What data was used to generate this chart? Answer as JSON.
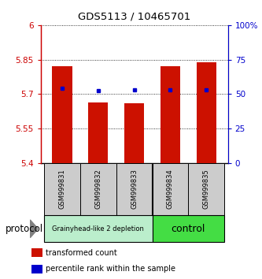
{
  "title": "GDS5113 / 10465701",
  "samples": [
    "GSM999831",
    "GSM999832",
    "GSM999833",
    "GSM999834",
    "GSM999835"
  ],
  "bar_values": [
    5.82,
    5.665,
    5.66,
    5.82,
    5.84
  ],
  "bar_base": 5.4,
  "percentile_values": [
    5.725,
    5.715,
    5.718,
    5.718,
    5.718
  ],
  "bar_color": "#CC1100",
  "dot_color": "#0000CC",
  "ylim": [
    5.4,
    6.0
  ],
  "yticks": [
    5.4,
    5.55,
    5.7,
    5.85,
    6.0
  ],
  "ytick_labels": [
    "5.4",
    "5.55",
    "5.7",
    "5.85",
    "6"
  ],
  "y2ticks": [
    0,
    25,
    50,
    75,
    100
  ],
  "y2tick_labels": [
    "0",
    "25",
    "50",
    "75",
    "100%"
  ],
  "ylabel_color_left": "#CC0000",
  "ylabel_color_right": "#0000CC",
  "groups": [
    {
      "label": "Grainyhead-like 2 depletion",
      "start": 0,
      "end": 3,
      "color": "#bbeecc"
    },
    {
      "label": "control",
      "start": 3,
      "end": 5,
      "color": "#44dd44"
    }
  ],
  "protocol_label": "protocol",
  "legend_items": [
    {
      "color": "#CC1100",
      "marker": "s",
      "label": "transformed count"
    },
    {
      "color": "#0000CC",
      "marker": "s",
      "label": "percentile rank within the sample"
    }
  ],
  "bar_width": 0.55,
  "fig_width": 3.33,
  "fig_height": 3.54,
  "dpi": 100
}
